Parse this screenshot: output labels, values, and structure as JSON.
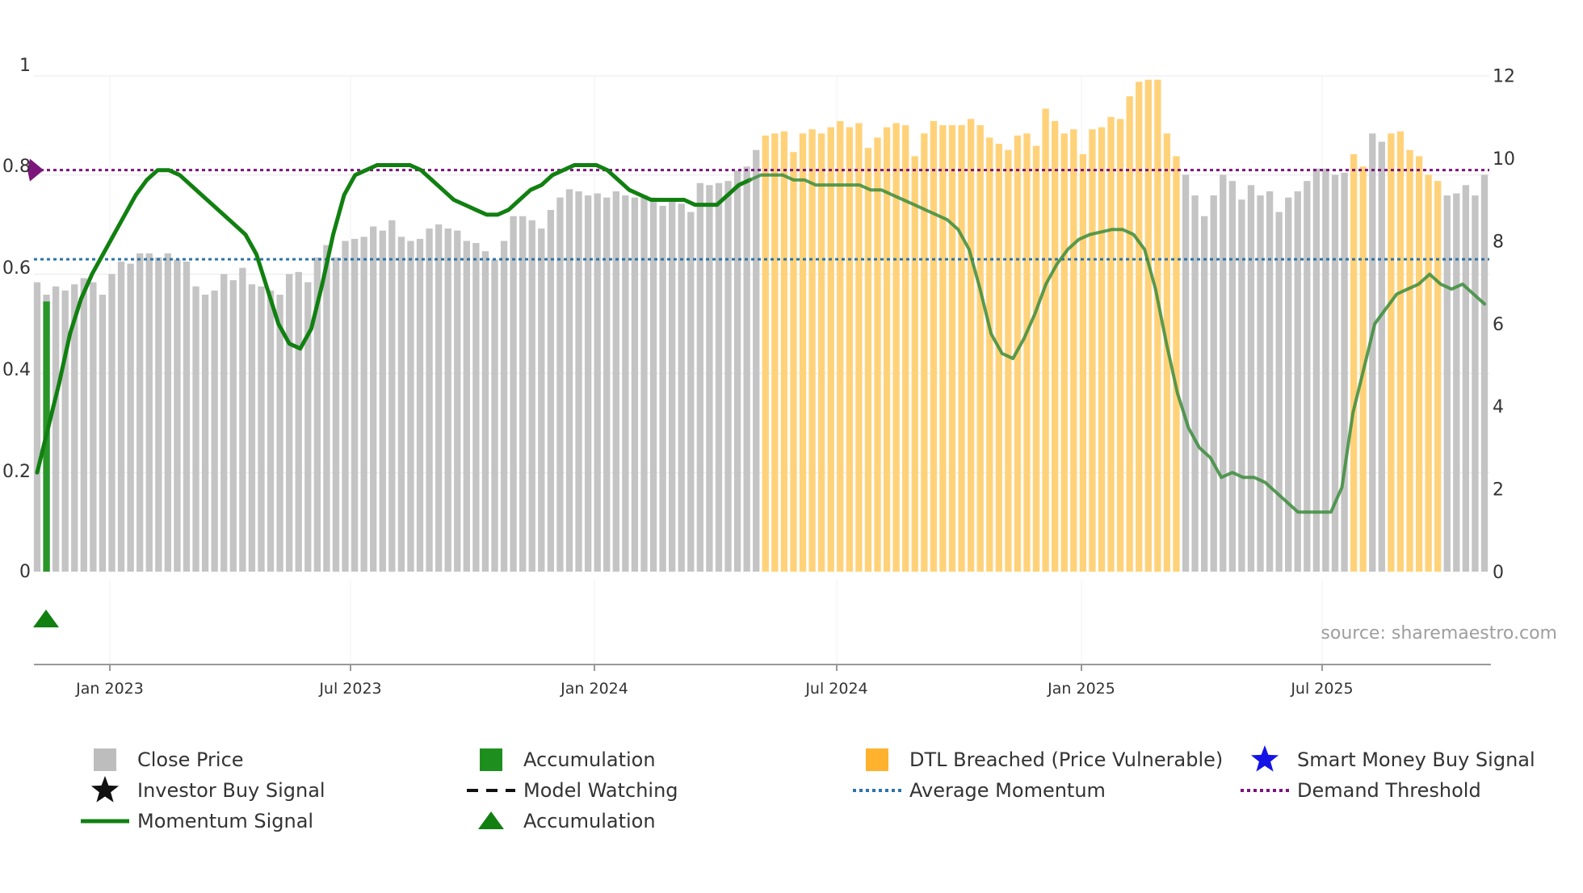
{
  "chart_data": {
    "type": "bar",
    "title": "",
    "source_text": "source: sharemaestro.com",
    "x_axis": {
      "range": [
        "2022-11",
        "2025-11"
      ],
      "tick_labels": [
        "Jan 2023",
        "Jul 2023",
        "Jan 2024",
        "Jul 2024",
        "Jan 2025",
        "Jul 2025"
      ]
    },
    "y_left": {
      "range": [
        0,
        1
      ],
      "tick_labels": [
        "0",
        "0.2",
        "0.4",
        "0.6",
        "0.8",
        "1"
      ]
    },
    "y_right": {
      "range": [
        0,
        12
      ],
      "tick_labels": [
        "0",
        "2",
        "4",
        "6",
        "8",
        "10",
        "12"
      ]
    },
    "average_momentum": 0.63,
    "demand_threshold": 0.81,
    "close_price_weekly": [
      7.0,
      6.7,
      6.9,
      6.8,
      6.95,
      7.1,
      7.0,
      6.7,
      7.2,
      7.5,
      7.45,
      7.7,
      7.7,
      7.6,
      7.7,
      7.55,
      7.5,
      6.9,
      6.7,
      6.8,
      7.2,
      7.05,
      7.35,
      6.95,
      6.9,
      6.8,
      6.7,
      7.2,
      7.25,
      7.0,
      7.6,
      7.9,
      7.6,
      8.0,
      8.05,
      8.1,
      8.35,
      8.25,
      8.5,
      8.1,
      8.0,
      8.05,
      8.3,
      8.4,
      8.3,
      8.25,
      8.0,
      7.95,
      7.75,
      7.55,
      8.0,
      8.6,
      8.6,
      8.5,
      8.3,
      8.75,
      9.05,
      9.25,
      9.2,
      9.1,
      9.15,
      9.05,
      9.2,
      9.1,
      9.05,
      9.1,
      9.05,
      8.85,
      8.95,
      8.9,
      8.7,
      9.4,
      9.35,
      9.4,
      9.45,
      9.7,
      9.8,
      10.2,
      10.55,
      10.6,
      10.65,
      10.15,
      10.6,
      10.7,
      10.6,
      10.75,
      10.9,
      10.75,
      10.85,
      10.25,
      10.5,
      10.75,
      10.85,
      10.8,
      10.05,
      10.6,
      10.9,
      10.8,
      10.8,
      10.8,
      10.95,
      10.8,
      10.5,
      10.35,
      10.2,
      10.55,
      10.6,
      10.3,
      11.2,
      10.9,
      10.6,
      10.7,
      10.1,
      10.7,
      10.75,
      11.0,
      10.95,
      11.5,
      11.85,
      11.9,
      11.9,
      10.6,
      10.05,
      9.6,
      9.1,
      8.6,
      9.1,
      9.6,
      9.45,
      9.0,
      9.35,
      9.1,
      9.2,
      8.7,
      9.05,
      9.2,
      9.45,
      9.75,
      9.75,
      9.6,
      9.65,
      10.1,
      9.8,
      10.6,
      10.4,
      10.6,
      10.65,
      10.2,
      10.05,
      9.6,
      9.45,
      9.1,
      9.15,
      9.35,
      9.1,
      9.6
    ],
    "accumulation_bar_index": 1,
    "dtl_breached_ranges": [
      [
        78,
        122
      ],
      [
        141,
        142
      ],
      [
        145,
        150
      ]
    ],
    "momentum_signal_weekly": [
      0.2,
      0.29,
      0.38,
      0.48,
      0.55,
      0.6,
      0.64,
      0.68,
      0.72,
      0.76,
      0.79,
      0.81,
      0.81,
      0.8,
      0.78,
      0.76,
      0.74,
      0.72,
      0.7,
      0.68,
      0.64,
      0.57,
      0.5,
      0.46,
      0.45,
      0.49,
      0.58,
      0.68,
      0.76,
      0.8,
      0.81,
      0.82,
      0.82,
      0.82,
      0.82,
      0.81,
      0.79,
      0.77,
      0.75,
      0.74,
      0.73,
      0.72,
      0.72,
      0.73,
      0.75,
      0.77,
      0.78,
      0.8,
      0.81,
      0.82,
      0.82,
      0.82,
      0.81,
      0.79,
      0.77,
      0.76,
      0.75,
      0.75,
      0.75,
      0.75,
      0.74,
      0.74,
      0.74,
      0.76,
      0.78,
      0.79,
      0.8,
      0.8,
      0.8,
      0.79,
      0.79,
      0.78,
      0.78,
      0.78,
      0.78,
      0.78,
      0.77,
      0.77,
      0.76,
      0.75,
      0.74,
      0.73,
      0.72,
      0.71,
      0.69,
      0.65,
      0.57,
      0.48,
      0.44,
      0.43,
      0.47,
      0.52,
      0.58,
      0.62,
      0.65,
      0.67,
      0.68,
      0.685,
      0.69,
      0.69,
      0.68,
      0.65,
      0.57,
      0.46,
      0.36,
      0.29,
      0.25,
      0.23,
      0.19,
      0.2,
      0.19,
      0.19,
      0.18,
      0.16,
      0.14,
      0.12,
      0.12,
      0.12,
      0.12,
      0.17,
      0.32,
      0.41,
      0.5,
      0.53,
      0.56,
      0.57,
      0.58,
      0.6,
      0.58,
      0.57,
      0.58,
      0.56,
      0.54
    ],
    "accumulation_marker_index": 1
  },
  "legend": [
    {
      "label": "Close Price",
      "symbol": "square",
      "color": "#bdbdbd"
    },
    {
      "label": "Accumulation",
      "symbol": "square",
      "color": "#1e8f1e"
    },
    {
      "label": "DTL Breached (Price Vulnerable)",
      "symbol": "square",
      "color": "#ffb22e"
    },
    {
      "label": "Smart Money Buy Signal",
      "symbol": "star",
      "color": "#1414e6"
    },
    {
      "label": "Investor Buy Signal",
      "symbol": "star",
      "color": "#111111"
    },
    {
      "label": "Model Watching",
      "symbol": "dash",
      "color": "#111111"
    },
    {
      "label": "Average Momentum",
      "symbol": "dot",
      "color": "#2e74a8"
    },
    {
      "label": "Demand Threshold",
      "symbol": "dot",
      "color": "#7b147b"
    },
    {
      "label": "Momentum Signal",
      "symbol": "line",
      "color": "#118011"
    },
    {
      "label": "Accumulation",
      "symbol": "triangle",
      "color": "#118011"
    }
  ]
}
